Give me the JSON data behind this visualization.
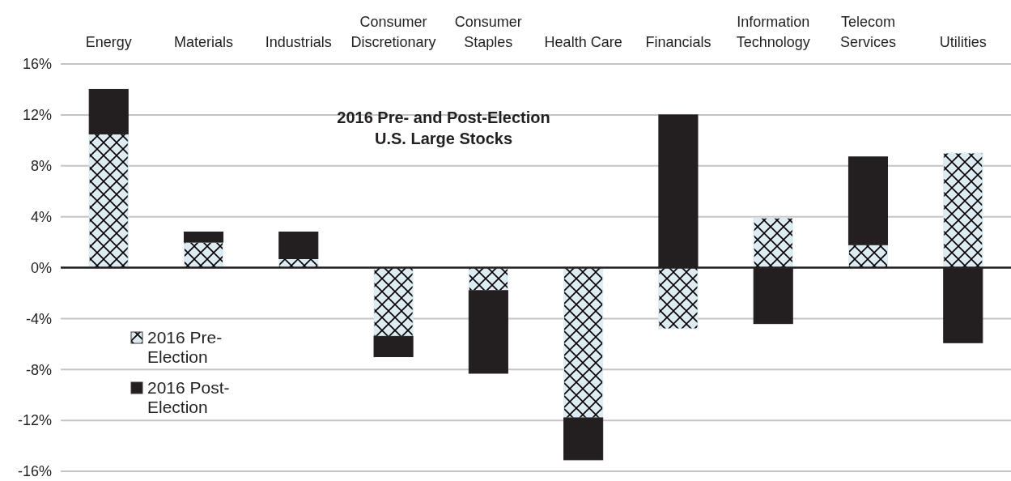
{
  "chart_data": {
    "type": "bar",
    "stacked": true,
    "title": "2016 Pre- and Post-Election\nU.S. Large Stocks",
    "categories": [
      "Energy",
      "Materials",
      "Industrials",
      "Consumer Discretionary",
      "Consumer Staples",
      "Health Care",
      "Financials",
      "Information Technology",
      "Telecom Services",
      "Utilities"
    ],
    "series": [
      {
        "name": "2016 Pre-Election",
        "color": "#dceaf2",
        "values": [
          10.5,
          2.0,
          0.7,
          -5.4,
          -1.8,
          -11.8,
          -4.8,
          3.9,
          1.8,
          9.0
        ]
      },
      {
        "name": "2016 Post-Election",
        "color": "#231f20",
        "values": [
          3.5,
          0.8,
          2.1,
          -1.6,
          -6.5,
          -3.3,
          12.0,
          -4.4,
          6.9,
          -5.9
        ]
      }
    ],
    "ylim": [
      -16,
      16
    ],
    "yticks": [
      {
        "value": -16,
        "label": "-16%"
      },
      {
        "value": -12,
        "label": "-12%"
      },
      {
        "value": -8,
        "label": "-8%"
      },
      {
        "value": -4,
        "label": "-4%"
      },
      {
        "value": 0,
        "label": "0%"
      },
      {
        "value": 4,
        "label": "4%"
      },
      {
        "value": 8,
        "label": "8%"
      },
      {
        "value": 12,
        "label": "12%"
      },
      {
        "value": 16,
        "label": "16%"
      }
    ],
    "grid": "y",
    "legend": "left"
  }
}
